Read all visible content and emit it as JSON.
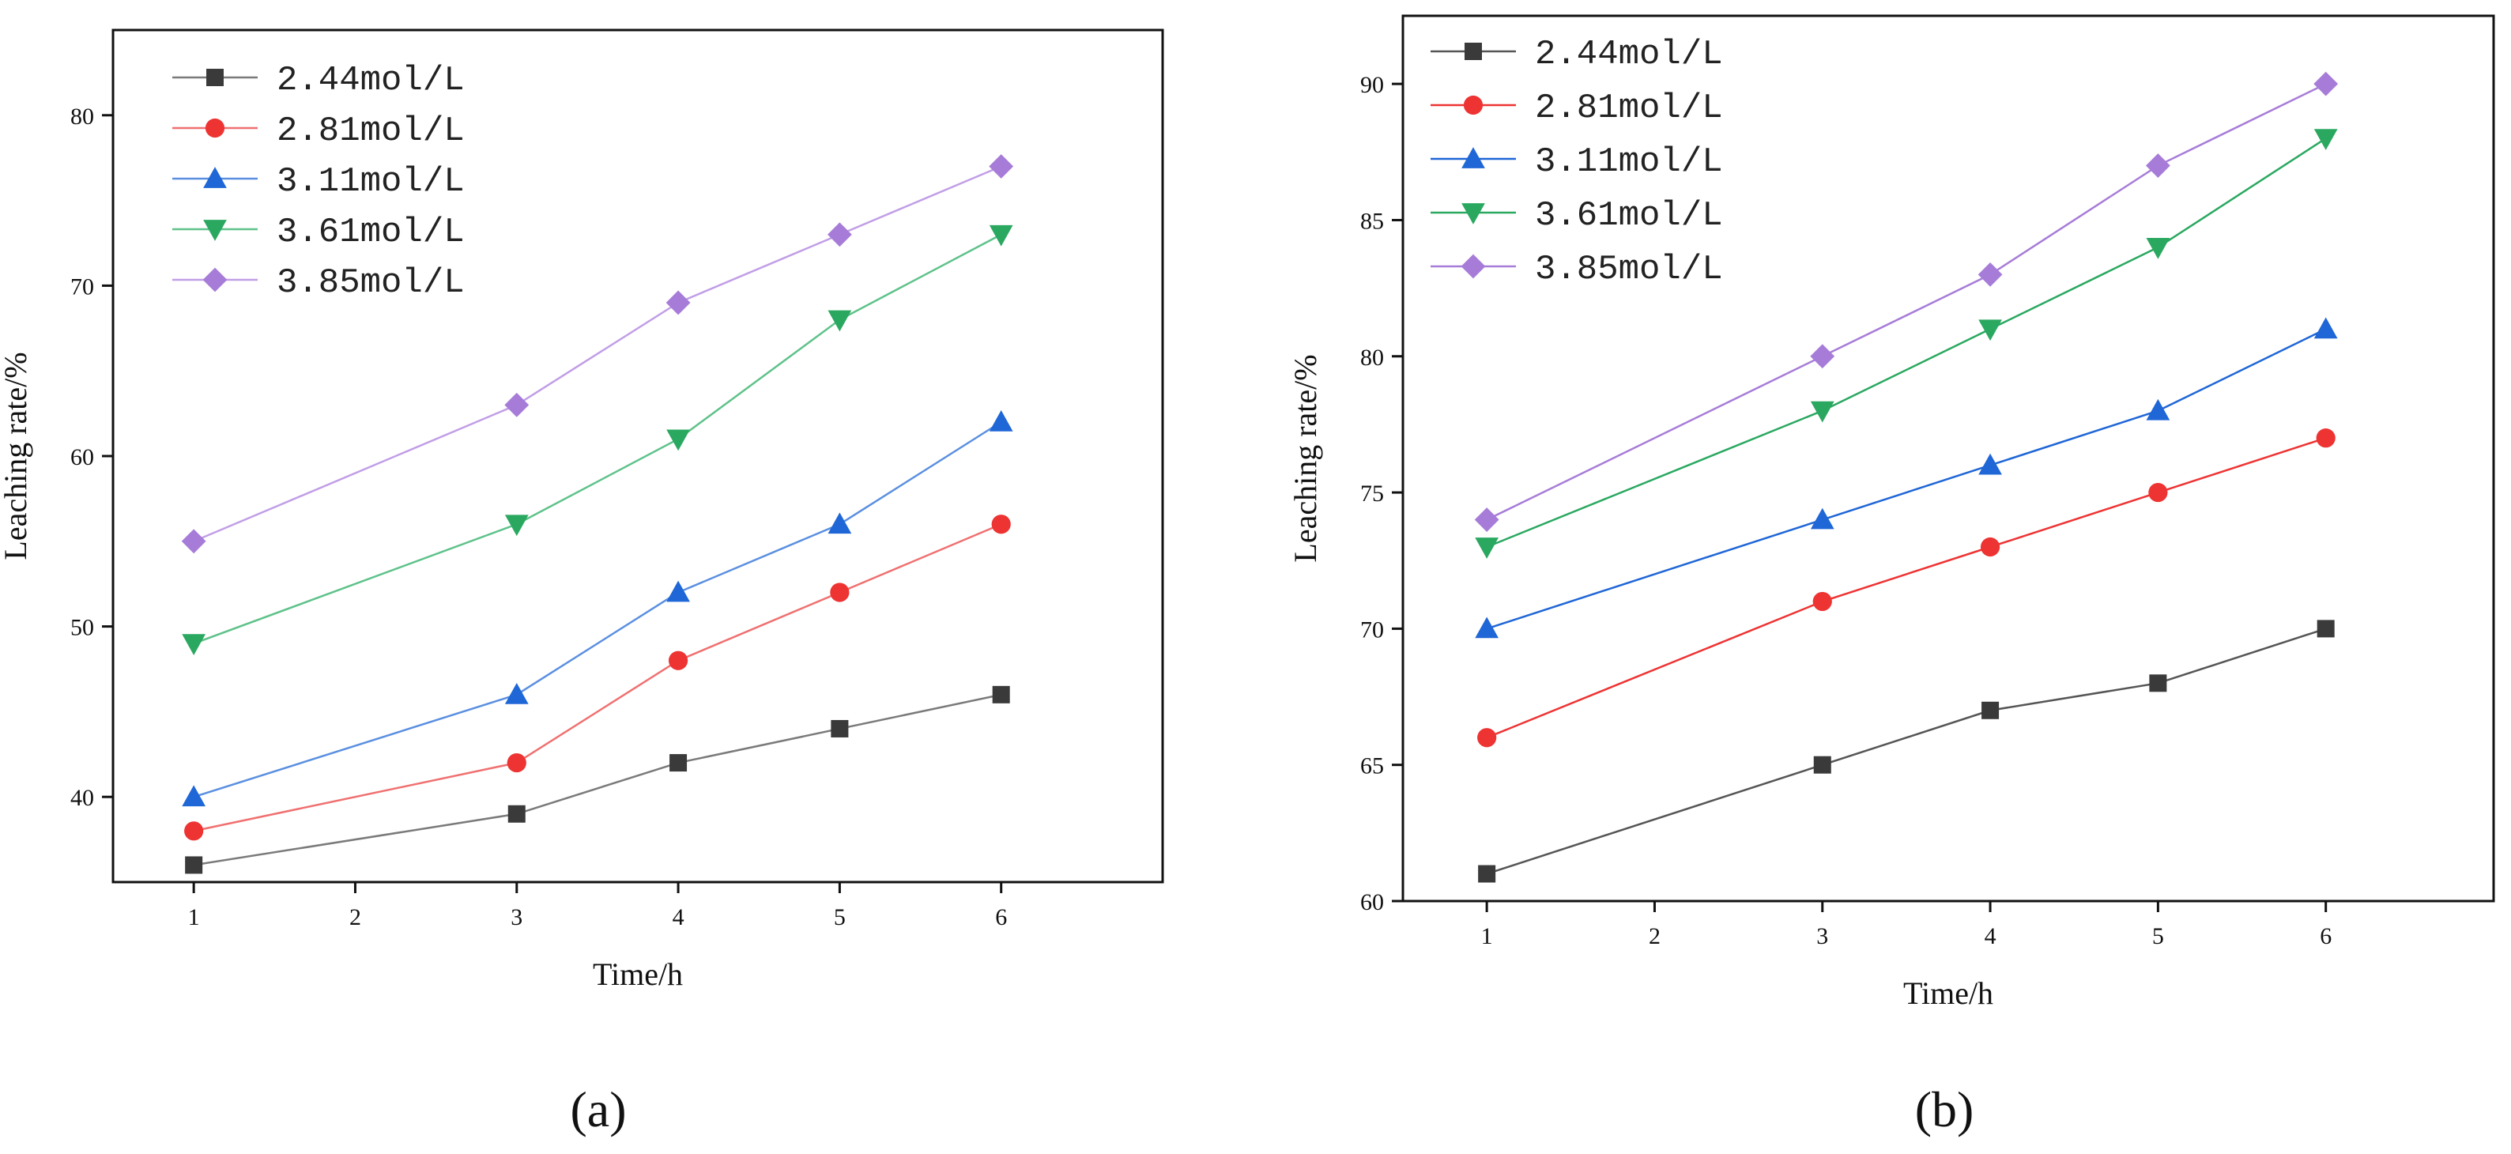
{
  "chart_data": [
    {
      "type": "line",
      "panel_label": "(a)",
      "xlabel": "Time/h",
      "ylabel": "Leaching rate/%",
      "x": [
        1,
        3,
        4,
        5,
        6
      ],
      "xlim": [
        0.5,
        7.0
      ],
      "ylim": [
        35,
        85
      ],
      "xticks": [
        1,
        2,
        3,
        4,
        5,
        6
      ],
      "yticks": [
        40,
        50,
        60,
        70,
        80
      ],
      "legend_position": "top-left",
      "series": [
        {
          "name": "2.44mol/L",
          "marker": "square",
          "color": "#3a3a3a",
          "line_color": "#7a7a7a",
          "values": [
            36,
            39,
            42,
            44,
            46
          ]
        },
        {
          "name": "2.81mol/L",
          "marker": "circle",
          "color": "#ee3333",
          "line_color": "#f07070",
          "values": [
            38,
            42,
            48,
            52,
            56
          ]
        },
        {
          "name": "3.11mol/L",
          "marker": "triangle-up",
          "color": "#1f66d6",
          "line_color": "#5a8fe0",
          "values": [
            40,
            46,
            52,
            56,
            62
          ]
        },
        {
          "name": "3.61mol/L",
          "marker": "triangle-down",
          "color": "#2aa860",
          "line_color": "#5ec28a",
          "values": [
            49,
            56,
            61,
            68,
            73
          ]
        },
        {
          "name": "3.85mol/L",
          "marker": "diamond",
          "color": "#a77cd8",
          "line_color": "#c19ee6",
          "values": [
            55,
            63,
            69,
            73,
            77
          ]
        }
      ]
    },
    {
      "type": "line",
      "panel_label": "(b)",
      "xlabel": "Time/h",
      "ylabel": "Leaching rate/%",
      "x": [
        1,
        3,
        4,
        5,
        6
      ],
      "xlim": [
        0.5,
        7.0
      ],
      "ylim": [
        60,
        92.5
      ],
      "xticks": [
        1,
        2,
        3,
        4,
        5,
        6
      ],
      "yticks": [
        60,
        65,
        70,
        75,
        80,
        85,
        90
      ],
      "legend_position": "top-left",
      "series": [
        {
          "name": "2.44mol/L",
          "marker": "square",
          "color": "#3a3a3a",
          "line_color": "#555555",
          "values": [
            61,
            65,
            67,
            68,
            70
          ]
        },
        {
          "name": "2.81mol/L",
          "marker": "circle",
          "color": "#ee3333",
          "line_color": "#ee3333",
          "values": [
            66,
            71,
            73,
            75,
            77
          ]
        },
        {
          "name": "3.11mol/L",
          "marker": "triangle-up",
          "color": "#1f66d6",
          "line_color": "#1f66d6",
          "values": [
            70,
            74,
            76,
            78,
            81
          ]
        },
        {
          "name": "3.61mol/L",
          "marker": "triangle-down",
          "color": "#2aa860",
          "line_color": "#2aa860",
          "values": [
            73,
            78,
            81,
            84,
            88
          ]
        },
        {
          "name": "3.85mol/L",
          "marker": "diamond",
          "color": "#a77cd8",
          "line_color": "#a77cd8",
          "values": [
            74,
            80,
            83,
            87,
            90
          ]
        }
      ]
    }
  ]
}
